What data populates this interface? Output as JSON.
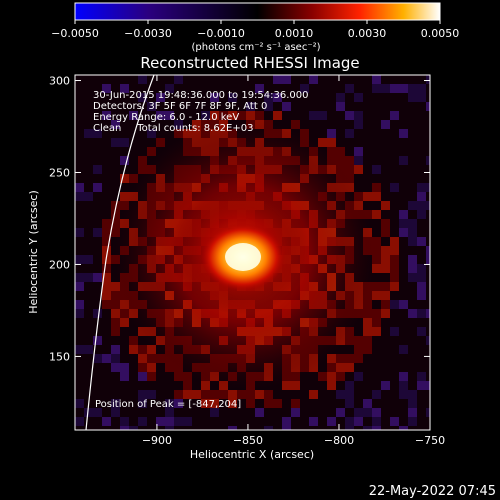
{
  "chart_data": {
    "type": "heatmap",
    "title": "Reconstructed RHESSI Image",
    "xlabel": "Heliocentric X (arcsec)",
    "ylabel": "Heliocentric Y (arcsec)",
    "xlim": [
      -945,
      -750
    ],
    "ylim": [
      110,
      303
    ],
    "xticks": [
      -900,
      -850,
      -800,
      -750
    ],
    "xtick_labels": [
      "−900",
      "−850",
      "−800",
      "−750"
    ],
    "yticks": [
      150,
      200,
      250,
      300
    ],
    "ytick_labels": [
      "150",
      "200",
      "250",
      "300"
    ],
    "colorbar": {
      "range": [
        -0.005,
        0.005
      ],
      "ticks": [
        -0.005,
        -0.003,
        -0.001,
        0.001,
        0.003,
        0.005
      ],
      "tick_labels": [
        "−0.0050",
        "−0.0030",
        "−0.0010",
        "0.0010",
        "0.0030",
        "0.0050"
      ],
      "unit_label": "(photons cm⁻² s⁻¹ asec⁻²)",
      "colors": [
        "#0000ff",
        "#2a0080",
        "#000000",
        "#8a0000",
        "#ff2200",
        "#ffb000",
        "#ffffff"
      ]
    },
    "annotations": [
      "30-Jun-2015 19:48:36.000 to 19:54:36.000",
      "Detectors: 3F 5F 6F 7F 8F 9F, Att 0",
      "Energy Range: 6.0 - 12.0 keV",
      "Clean     Total counts: 8.62E+03"
    ],
    "peak_label": "Position of Peak = [-847,204]",
    "peak": {
      "x": -847,
      "y": 204
    },
    "timestamp": "22-May-2022 07:45"
  }
}
